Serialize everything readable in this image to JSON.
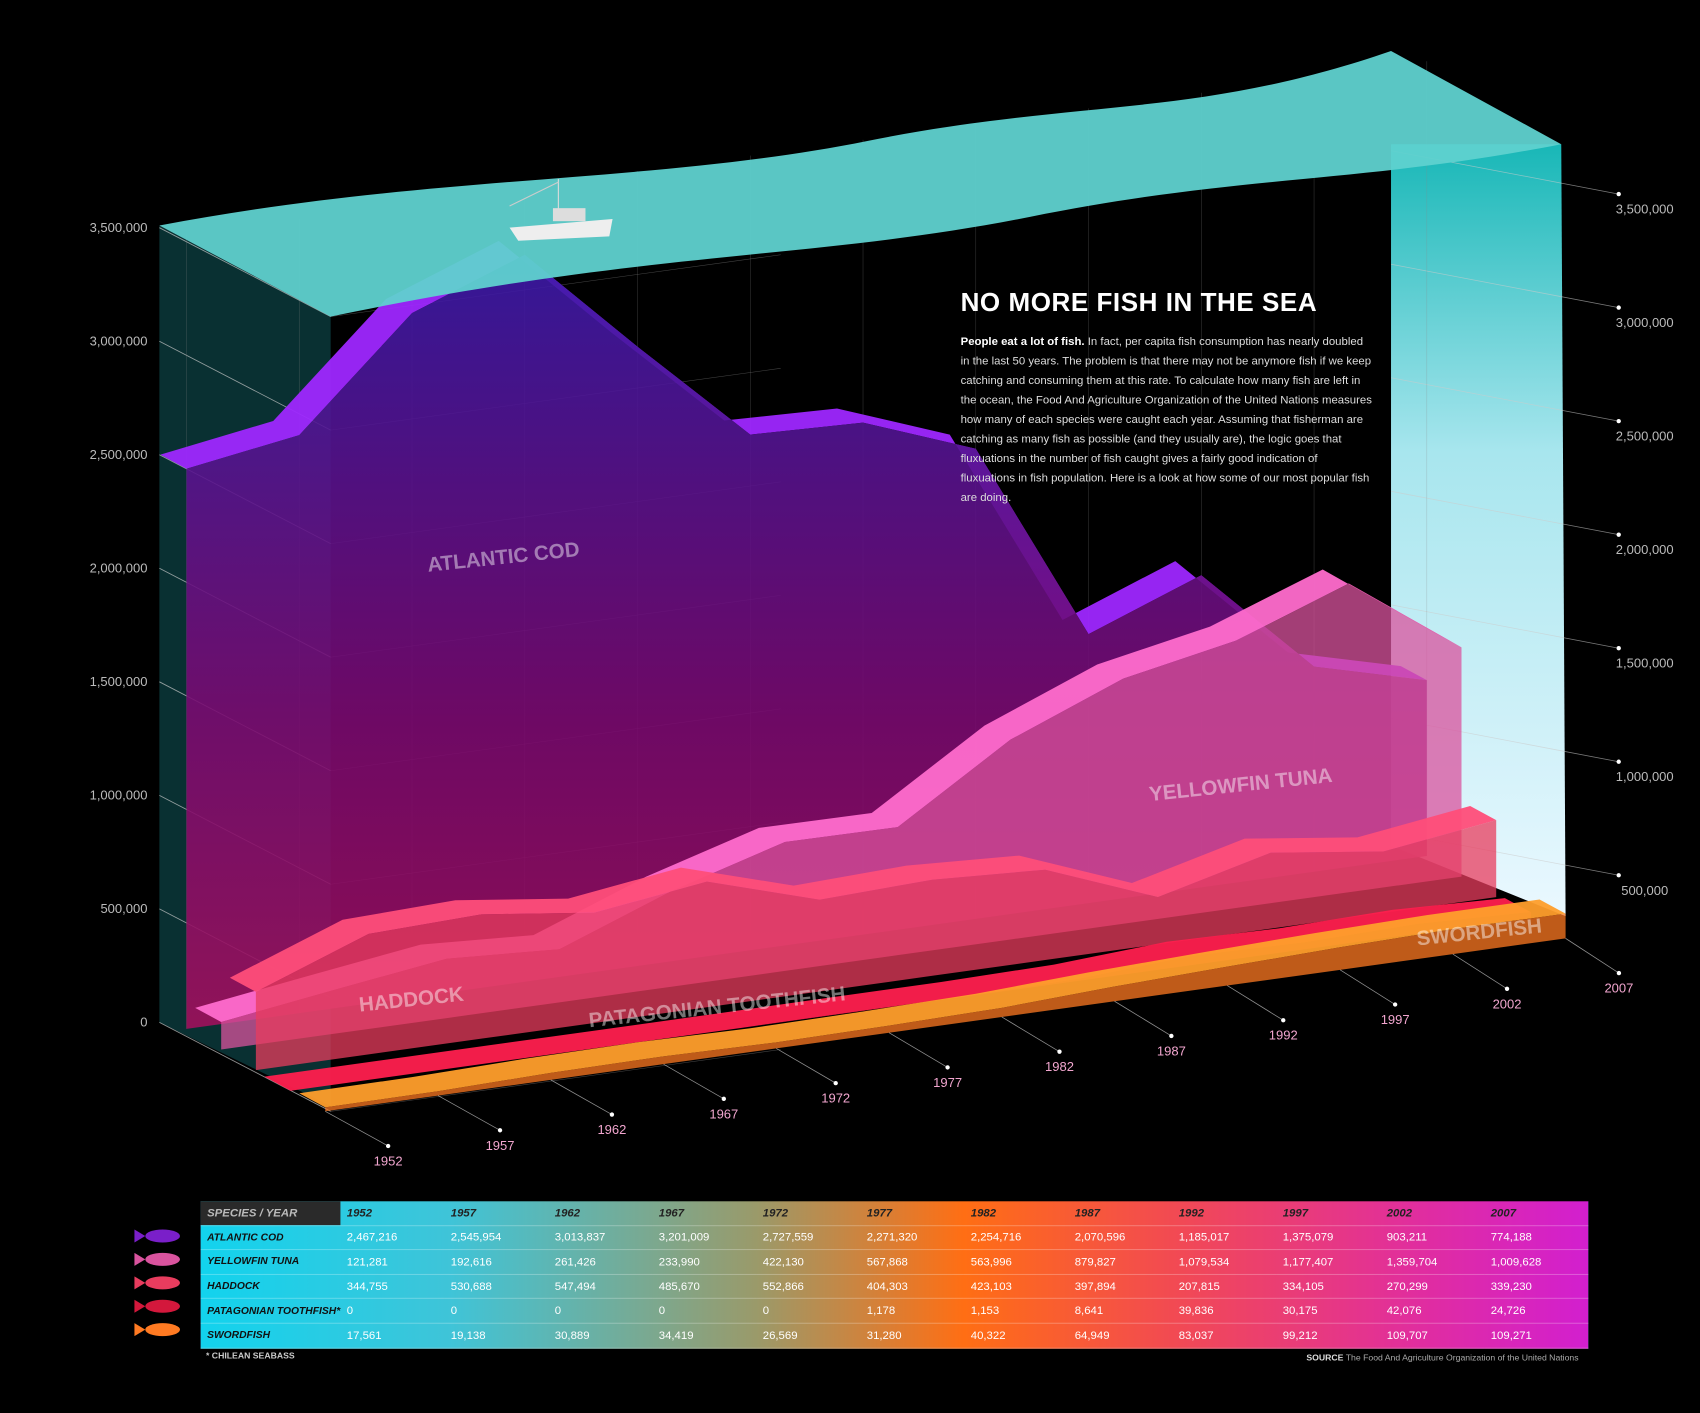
{
  "chart_data": {
    "type": "ribbon3d",
    "title": "NO MORE FISH IN THE SEA",
    "intro_lead": "People eat a lot of fish.",
    "intro_body": "In fact, per capita fish consumption has nearly doubled in the last 50 years. The problem is that there may not be anymore fish if we keep catching and consuming them at this rate. To calculate how many fish are left in the ocean, the Food And Agriculture Organization of the United Nations measures how many of each species were caught each year. Assuming that fisherman are catching as many fish as possible (and they usually are), the logic goes that fluxuations in the number of fish caught gives a fairly good indication of fluxuations in fish population. Here is a look at how some of our most popular fish are doing.",
    "x": [
      "1952",
      "1957",
      "1962",
      "1967",
      "1972",
      "1977",
      "1982",
      "1987",
      "1992",
      "1997",
      "2002",
      "2007"
    ],
    "ylim": [
      0,
      3500000
    ],
    "yticks": [
      {
        "value": 0,
        "label": "0"
      },
      {
        "value": 500000,
        "label": "500,000"
      },
      {
        "value": 1000000,
        "label": "1,000,000"
      },
      {
        "value": 1500000,
        "label": "1,500,000"
      },
      {
        "value": 2000000,
        "label": "2,000,000"
      },
      {
        "value": 2500000,
        "label": "2,500,000"
      },
      {
        "value": 3000000,
        "label": "3,000,000"
      },
      {
        "value": 3500000,
        "label": "3,500,000"
      }
    ],
    "y2lim": [
      0,
      3500000
    ],
    "y2ticks": [
      {
        "value": 500000,
        "label": "500,000"
      },
      {
        "value": 1000000,
        "label": "1,000,000"
      },
      {
        "value": 1500000,
        "label": "1,500,000"
      },
      {
        "value": 2000000,
        "label": "2,000,000"
      },
      {
        "value": 2500000,
        "label": "2,500,000"
      },
      {
        "value": 3000000,
        "label": "3,000,000"
      },
      {
        "value": 3500000,
        "label": "3,500,000"
      }
    ],
    "table_header": "SPECIES / YEAR",
    "footnote_marker": "*",
    "footnote": "CHILEAN SEABASS",
    "source_label": "SOURCE",
    "source": "The Food And Agriculture Organization of the United Nations",
    "series": [
      {
        "name": "ATLANTIC COD",
        "color": "#7a1fc9",
        "values": [
          2467216,
          2545954,
          3013837,
          3201009,
          2727559,
          2271320,
          2254716,
          2070596,
          1185017,
          1375079,
          903211,
          774188
        ],
        "value_labels": [
          "2,467,216",
          "2,545,954",
          "3,013,837",
          "3,201,009",
          "2,727,559",
          "2,271,320",
          "2,254,716",
          "2,070,596",
          "1,185,017",
          "1,375,079",
          "903,211",
          "774,188"
        ]
      },
      {
        "name": "YELLOWFIN TUNA",
        "color": "#d9539e",
        "values": [
          121281,
          192616,
          261426,
          233990,
          422130,
          567868,
          563996,
          879827,
          1079534,
          1177407,
          1359704,
          1009628
        ],
        "value_labels": [
          "121,281",
          "192,616",
          "261,426",
          "233,990",
          "422,130",
          "567,868",
          "563,996",
          "879,827",
          "1,079,534",
          "1,177,407",
          "1,359,704",
          "1,009,628"
        ]
      },
      {
        "name": "HADDOCK",
        "color": "#e83c5e",
        "values": [
          344755,
          530688,
          547494,
          485670,
          552866,
          404303,
          423103,
          397894,
          207815,
          334105,
          270299,
          339230
        ],
        "value_labels": [
          "344,755",
          "530,688",
          "547,494",
          "485,670",
          "552,866",
          "404,303",
          "423,103",
          "397,894",
          "207,815",
          "334,105",
          "270,299",
          "339,230"
        ]
      },
      {
        "name": "PATAGONIAN TOOTHFISH",
        "color": "#d3183c",
        "values": [
          0,
          0,
          0,
          0,
          0,
          1178,
          1153,
          8641,
          39836,
          30175,
          42076,
          24726
        ],
        "value_labels": [
          "0",
          "0",
          "0",
          "0",
          "0",
          "1,178",
          "1,153",
          "8,641",
          "39,836",
          "30,175",
          "42,076",
          "24,726"
        ]
      },
      {
        "name": "SWORDFISH",
        "color": "#ff7a22",
        "values": [
          17561,
          19138,
          30889,
          34419,
          26569,
          31280,
          40322,
          64949,
          83037,
          99212,
          109707,
          109271
        ],
        "value_labels": [
          "17,561",
          "19,138",
          "30,889",
          "34,419",
          "26,569",
          "31,280",
          "40,322",
          "64,949",
          "83,037",
          "99,212",
          "109,707",
          "109,271"
        ]
      }
    ]
  }
}
